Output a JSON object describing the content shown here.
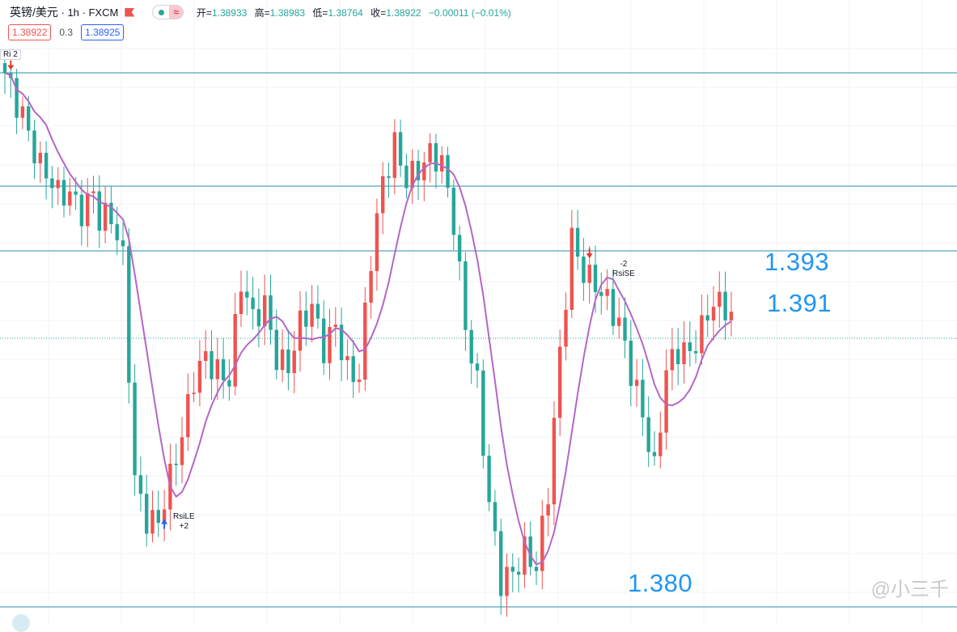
{
  "header": {
    "symbol": "英镑/美元",
    "interval": "1h",
    "source": "FXCM",
    "open_label": "开=",
    "open": "1.38933",
    "high_label": "高=",
    "high": "1.38983",
    "low_label": "低=",
    "low": "1.38764",
    "close_label": "收=",
    "close": "1.38922",
    "change": "−0.00011 (−0.01%)"
  },
  "quote": {
    "bid": "1.38922",
    "spread": "0.3",
    "ask": "1.38925"
  },
  "annotations": {
    "level_1393": "1.393",
    "level_1391": "1.391",
    "level_1380": "1.380"
  },
  "signals": {
    "top_tag": "Ri  2",
    "long_label": "RsiLE",
    "long_qty": "+2",
    "short_label": "RsiSE",
    "short_qty": "-2"
  },
  "watermark": "@小三千",
  "colors": {
    "up": "#ef5350",
    "down": "#26a69a",
    "ma": "#b566c6",
    "level": "#2a8fa8",
    "text_blue": "#2196f3"
  },
  "chart_data": {
    "type": "candlestick",
    "symbol": "GBP/USD",
    "interval": "1h",
    "ylim": [
      1.3795,
      1.398
    ],
    "horizontal_levels": [
      1.3965,
      1.393,
      1.391,
      1.3883,
      1.38
    ],
    "close_path": [
      [
        0,
        1.3965
      ],
      [
        3,
        1.3955
      ],
      [
        6,
        1.3935
      ],
      [
        9,
        1.3925
      ],
      [
        11,
        1.3928
      ],
      [
        13,
        1.3925
      ],
      [
        15,
        1.393
      ],
      [
        16,
        1.392
      ],
      [
        18,
        1.3918
      ],
      [
        20,
        1.3905
      ],
      [
        22,
        1.384
      ],
      [
        24,
        1.383
      ],
      [
        26,
        1.3828
      ],
      [
        28,
        1.3838
      ],
      [
        30,
        1.385
      ],
      [
        32,
        1.387
      ],
      [
        34,
        1.388
      ],
      [
        36,
        1.3875
      ],
      [
        38,
        1.387
      ],
      [
        40,
        1.3898
      ],
      [
        42,
        1.3887
      ],
      [
        44,
        1.3895
      ],
      [
        46,
        1.388
      ],
      [
        48,
        1.3875
      ],
      [
        50,
        1.3885
      ],
      [
        52,
        1.389
      ],
      [
        54,
        1.388
      ],
      [
        56,
        1.389
      ],
      [
        58,
        1.3875
      ],
      [
        60,
        1.387
      ],
      [
        62,
        1.3905
      ],
      [
        64,
        1.393
      ],
      [
        66,
        1.3945
      ],
      [
        68,
        1.3935
      ],
      [
        70,
        1.3935
      ],
      [
        72,
        1.3937
      ],
      [
        74,
        1.3935
      ],
      [
        76,
        1.392
      ],
      [
        78,
        1.389
      ],
      [
        80,
        1.387
      ],
      [
        82,
        1.383
      ],
      [
        84,
        1.3805
      ],
      [
        86,
        1.381
      ],
      [
        88,
        1.382
      ],
      [
        90,
        1.3815
      ],
      [
        92,
        1.3835
      ],
      [
        94,
        1.3875
      ],
      [
        96,
        1.3912
      ],
      [
        98,
        1.3905
      ],
      [
        100,
        1.3903
      ],
      [
        102,
        1.3895
      ],
      [
        104,
        1.3885
      ],
      [
        106,
        1.387
      ],
      [
        108,
        1.386
      ],
      [
        110,
        1.3845
      ],
      [
        112,
        1.3875
      ],
      [
        114,
        1.3878
      ],
      [
        116,
        1.3875
      ],
      [
        118,
        1.3885
      ],
      [
        120,
        1.3897
      ],
      [
        122,
        1.3895
      ],
      [
        123,
        1.3892
      ]
    ],
    "signals": [
      {
        "type": "short",
        "label": "RsiSE",
        "qty": "-2",
        "bar": 99
      },
      {
        "type": "long",
        "label": "RsiLE",
        "qty": "+2",
        "bar": 27
      }
    ]
  }
}
